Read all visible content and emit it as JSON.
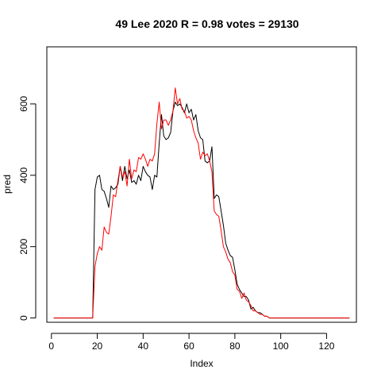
{
  "chart_data": {
    "type": "line",
    "title": "49 Lee 2020 R = 0.98 votes = 29130",
    "xlabel": "Index",
    "ylabel": "pred",
    "xlim": [
      -2,
      133
    ],
    "ylim": [
      -12,
      760
    ],
    "xticks": [
      0,
      20,
      40,
      60,
      80,
      100,
      120
    ],
    "yticks": [
      0,
      200,
      400,
      600
    ],
    "grid": false,
    "legend": "none",
    "series": [
      {
        "color": "#000000",
        "x": [
          1,
          2,
          3,
          4,
          5,
          6,
          7,
          8,
          9,
          10,
          11,
          12,
          13,
          14,
          15,
          16,
          17,
          18,
          19,
          20,
          21,
          22,
          23,
          24,
          25,
          26,
          27,
          28,
          29,
          30,
          31,
          32,
          33,
          34,
          35,
          36,
          37,
          38,
          39,
          40,
          41,
          42,
          43,
          44,
          45,
          46,
          47,
          48,
          49,
          50,
          51,
          52,
          53,
          54,
          55,
          56,
          57,
          58,
          59,
          60,
          61,
          62,
          63,
          64,
          65,
          66,
          67,
          68,
          69,
          70,
          71,
          72,
          73,
          74,
          75,
          76,
          77,
          78,
          79,
          80,
          81,
          82,
          83,
          84,
          85,
          86,
          87,
          88,
          89,
          90,
          91,
          92,
          93,
          94,
          95,
          96,
          97,
          98,
          99,
          100,
          101,
          102,
          103,
          104,
          105,
          106,
          107,
          108,
          109,
          110,
          111,
          112,
          113,
          114,
          115,
          116,
          117,
          118,
          119,
          120,
          121,
          122,
          123,
          124,
          125,
          126,
          127,
          128,
          129,
          130
        ],
        "y": [
          0,
          0,
          0,
          0,
          0,
          0,
          0,
          0,
          0,
          0,
          0,
          0,
          0,
          0,
          0,
          0,
          0,
          0,
          360,
          395,
          400,
          360,
          355,
          335,
          310,
          370,
          360,
          365,
          375,
          425,
          385,
          425,
          390,
          415,
          380,
          385,
          375,
          400,
          385,
          425,
          410,
          400,
          395,
          360,
          400,
          395,
          490,
          570,
          510,
          500,
          505,
          520,
          580,
          605,
          595,
          600,
          590,
          575,
          600,
          575,
          585,
          555,
          570,
          525,
          505,
          500,
          440,
          435,
          440,
          480,
          335,
          345,
          340,
          300,
          260,
          210,
          190,
          175,
          170,
          135,
          95,
          80,
          70,
          60,
          60,
          50,
          25,
          30,
          20,
          15,
          15,
          10,
          5,
          5,
          0,
          0,
          0,
          0,
          0,
          0,
          0,
          0,
          0,
          0,
          0,
          0,
          0,
          0,
          0,
          0,
          0,
          0,
          0,
          0,
          0,
          0,
          0,
          0,
          0,
          0,
          0,
          0,
          0,
          0,
          0,
          0,
          0,
          0,
          0,
          0
        ]
      },
      {
        "color": "#ff0000",
        "x": [
          1,
          2,
          3,
          4,
          5,
          6,
          7,
          8,
          9,
          10,
          11,
          12,
          13,
          14,
          15,
          16,
          17,
          18,
          19,
          20,
          21,
          22,
          23,
          24,
          25,
          26,
          27,
          28,
          29,
          30,
          31,
          32,
          33,
          34,
          35,
          36,
          37,
          38,
          39,
          40,
          41,
          42,
          43,
          44,
          45,
          46,
          47,
          48,
          49,
          50,
          51,
          52,
          53,
          54,
          55,
          56,
          57,
          58,
          59,
          60,
          61,
          62,
          63,
          64,
          65,
          66,
          67,
          68,
          69,
          70,
          71,
          72,
          73,
          74,
          75,
          76,
          77,
          78,
          79,
          80,
          81,
          82,
          83,
          84,
          85,
          86,
          87,
          88,
          89,
          90,
          91,
          92,
          93,
          94,
          95,
          96,
          97,
          98,
          99,
          100,
          101,
          102,
          103,
          104,
          105,
          106,
          107,
          108,
          109,
          110,
          111,
          112,
          113,
          114,
          115,
          116,
          117,
          118,
          119,
          120,
          121,
          122,
          123,
          124,
          125,
          126,
          127,
          128,
          129,
          130
        ],
        "y": [
          0,
          0,
          0,
          0,
          0,
          0,
          0,
          0,
          0,
          0,
          0,
          0,
          0,
          0,
          0,
          0,
          0,
          0,
          145,
          180,
          200,
          190,
          255,
          240,
          235,
          285,
          345,
          340,
          385,
          425,
          395,
          410,
          370,
          445,
          390,
          415,
          410,
          450,
          445,
          460,
          445,
          425,
          445,
          440,
          460,
          545,
          605,
          530,
          555,
          555,
          540,
          555,
          580,
          645,
          600,
          615,
          585,
          580,
          560,
          565,
          555,
          525,
          505,
          490,
          445,
          465,
          455,
          460,
          440,
          410,
          300,
          290,
          285,
          245,
          200,
          185,
          165,
          155,
          130,
          120,
          80,
          75,
          55,
          70,
          50,
          45,
          35,
          20,
          20,
          15,
          10,
          10,
          5,
          5,
          0,
          0,
          0,
          0,
          0,
          0,
          0,
          0,
          0,
          0,
          0,
          0,
          0,
          0,
          0,
          0,
          0,
          0,
          0,
          0,
          0,
          0,
          0,
          0,
          0,
          0,
          0,
          0,
          0,
          0,
          0,
          0,
          0,
          0,
          0,
          0
        ]
      }
    ]
  }
}
